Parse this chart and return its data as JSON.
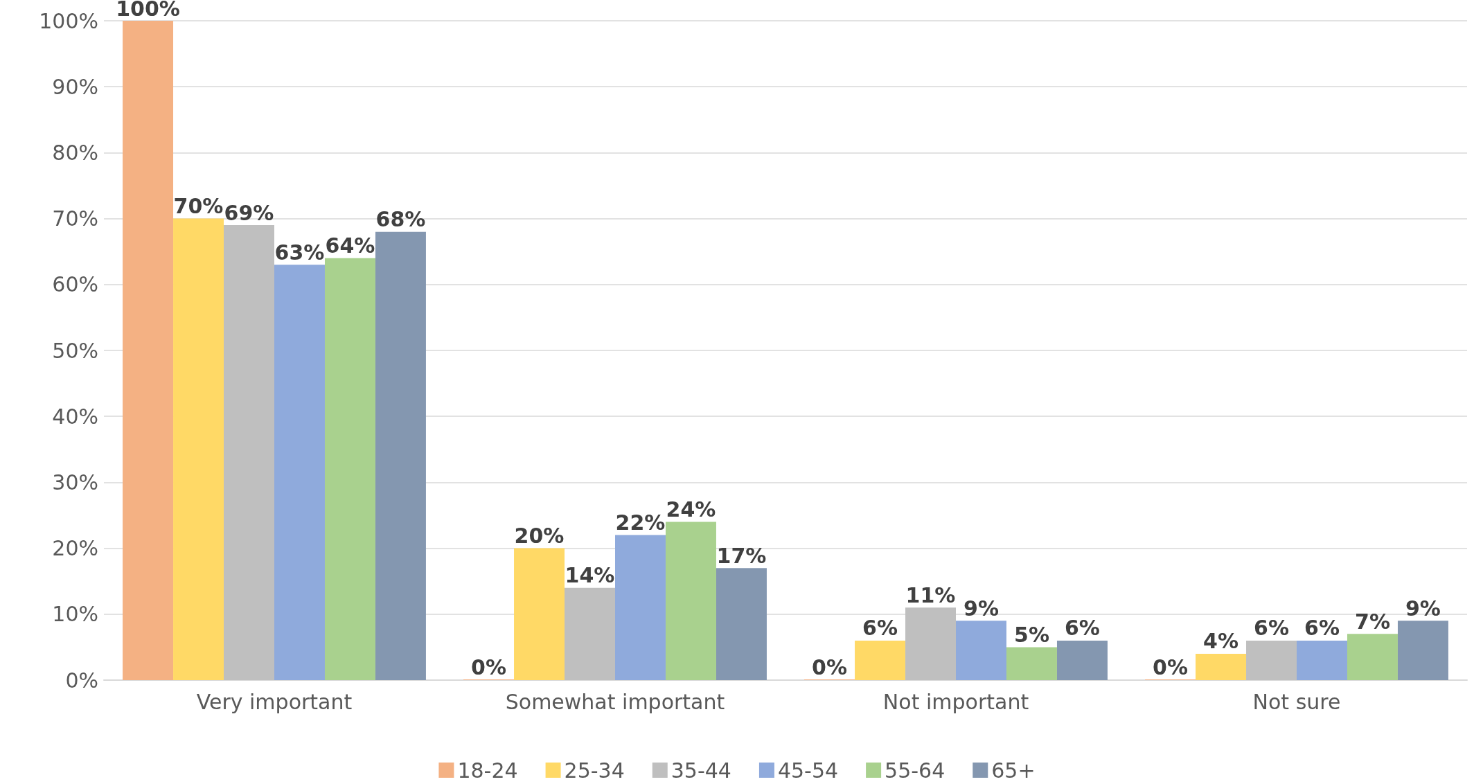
{
  "chart_data": {
    "type": "bar",
    "categories": [
      "Very important",
      "Somewhat important",
      "Not important",
      "Not sure"
    ],
    "series": [
      {
        "name": "18-24",
        "color": "#f4b183",
        "values": [
          100,
          0,
          0,
          0
        ],
        "value_labels": [
          "100%",
          "0%",
          "0%",
          "0%"
        ]
      },
      {
        "name": "25-34",
        "color": "#ffd966",
        "values": [
          70,
          20,
          6,
          4
        ],
        "value_labels": [
          "70%",
          "20%",
          "6%",
          "4%"
        ]
      },
      {
        "name": "35-44",
        "color": "#bfbfbf",
        "values": [
          69,
          14,
          11,
          6
        ],
        "value_labels": [
          "69%",
          "14%",
          "11%",
          "6%"
        ]
      },
      {
        "name": "45-54",
        "color": "#8faadc",
        "values": [
          63,
          22,
          9,
          6
        ],
        "value_labels": [
          "63%",
          "22%",
          "9%",
          "6%"
        ]
      },
      {
        "name": "55-64",
        "color": "#a9d18e",
        "values": [
          64,
          24,
          5,
          7
        ],
        "value_labels": [
          "64%",
          "24%",
          "5%",
          "7%"
        ]
      },
      {
        "name": "65+",
        "color": "#8497b0",
        "values": [
          68,
          17,
          6,
          9
        ],
        "value_labels": [
          "68%",
          "17%",
          "6%",
          "9%"
        ]
      }
    ],
    "ylim": [
      0,
      100
    ],
    "yticks": [
      {
        "value": 0,
        "label": "0%"
      },
      {
        "value": 10,
        "label": "10%"
      },
      {
        "value": 20,
        "label": "20%"
      },
      {
        "value": 30,
        "label": "30%"
      },
      {
        "value": 40,
        "label": "40%"
      },
      {
        "value": 50,
        "label": "50%"
      },
      {
        "value": 60,
        "label": "60%"
      },
      {
        "value": 70,
        "label": "70%"
      },
      {
        "value": 80,
        "label": "80%"
      },
      {
        "value": 90,
        "label": "90%"
      },
      {
        "value": 100,
        "label": "100%"
      }
    ],
    "grid": "y",
    "legend": "bottom"
  }
}
